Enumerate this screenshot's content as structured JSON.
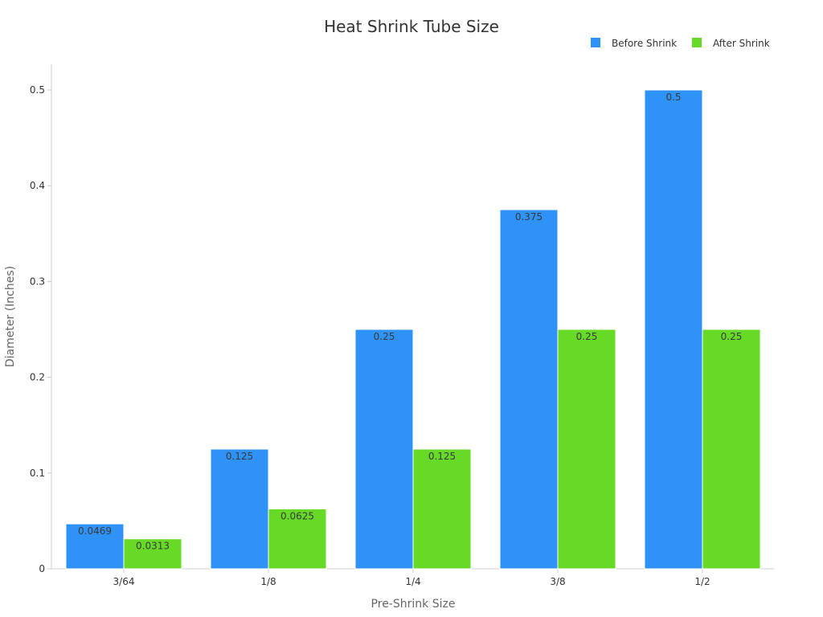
{
  "chart_data": {
    "type": "bar",
    "title": "Heat Shrink Tube Size",
    "xlabel": "Pre-Shrink Size",
    "ylabel": "Diameter (Inches)",
    "categories": [
      "3/64",
      "1/8",
      "1/4",
      "3/8",
      "1/2"
    ],
    "series": [
      {
        "name": "Before Shrink",
        "color": "#2e92f6",
        "values": [
          0.0469,
          0.125,
          0.25,
          0.375,
          0.5
        ],
        "labels": [
          "0.0469",
          "0.125",
          "0.25",
          "0.375",
          "0.5"
        ]
      },
      {
        "name": "After Shrink",
        "color": "#66da26",
        "values": [
          0.0313,
          0.0625,
          0.125,
          0.25,
          0.25
        ],
        "labels": [
          "0.0313",
          "0.0625",
          "0.125",
          "0.25",
          "0.25"
        ]
      }
    ],
    "ylim": [
      0,
      0.525
    ],
    "yticks": [
      0,
      0.1,
      0.2,
      0.3,
      0.4,
      0.5
    ],
    "ytick_labels": [
      "0",
      "0.1",
      "0.2",
      "0.3",
      "0.4",
      "0.5"
    ],
    "grid": false,
    "legend_position": "top-right"
  }
}
